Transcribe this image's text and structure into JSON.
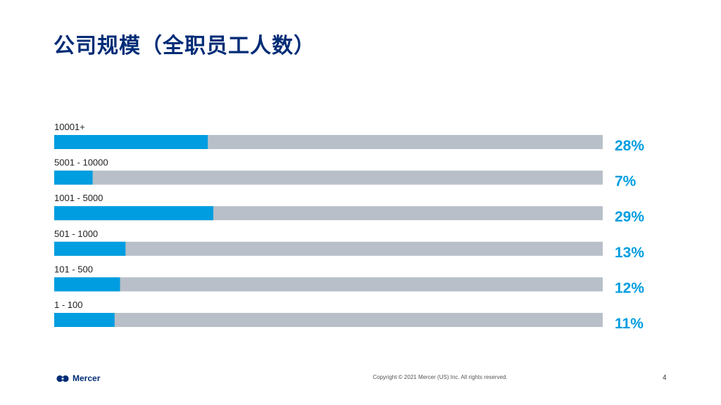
{
  "slide": {
    "title": "公司规模（全职员工人数）",
    "copyright": "Copyright © 2021 Mercer (US) Inc. All rights reserved.",
    "page_number": "4",
    "brand": "Mercer"
  },
  "colors": {
    "title": "#002c77",
    "bar_fill": "#009de0",
    "bar_track": "#b8bfc8",
    "percent_label": "#009de0",
    "category_label": "#222222"
  },
  "chart_data": {
    "type": "bar",
    "orientation": "horizontal",
    "categories": [
      "10001+",
      "5001 - 10000",
      "1001 - 5000",
      "501 - 1000",
      "101 - 500",
      "1 - 100"
    ],
    "values": [
      28,
      7,
      29,
      13,
      12,
      11
    ],
    "value_labels": [
      "28%",
      "7%",
      "29%",
      "13%",
      "12%",
      "11%"
    ],
    "xlim": [
      0,
      100
    ],
    "title": "",
    "xlabel": "",
    "ylabel": "",
    "grid": false,
    "legend": "none"
  }
}
